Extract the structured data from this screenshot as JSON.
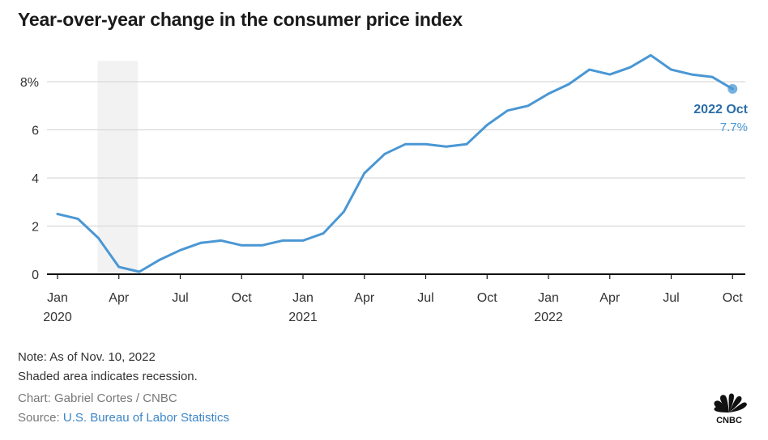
{
  "chart_data": {
    "type": "line",
    "title": "Year-over-year change in the consumer price index",
    "xlabel": "",
    "ylabel": "",
    "ylim": [
      0,
      9
    ],
    "yticks": [
      0,
      2,
      4,
      6,
      8
    ],
    "ytick_labels": [
      "0",
      "2",
      "4",
      "6",
      "8%"
    ],
    "grid": true,
    "xticks": [
      {
        "month": "2020-01",
        "label": "Jan",
        "year": "2020"
      },
      {
        "month": "2020-04",
        "label": "Apr",
        "year": ""
      },
      {
        "month": "2020-07",
        "label": "Jul",
        "year": ""
      },
      {
        "month": "2020-10",
        "label": "Oct",
        "year": ""
      },
      {
        "month": "2021-01",
        "label": "Jan",
        "year": "2021"
      },
      {
        "month": "2021-04",
        "label": "Apr",
        "year": ""
      },
      {
        "month": "2021-07",
        "label": "Jul",
        "year": ""
      },
      {
        "month": "2021-10",
        "label": "Oct",
        "year": ""
      },
      {
        "month": "2022-01",
        "label": "Jan",
        "year": "2022"
      },
      {
        "month": "2022-04",
        "label": "Apr",
        "year": ""
      },
      {
        "month": "2022-07",
        "label": "Jul",
        "year": ""
      },
      {
        "month": "2022-10",
        "label": "Oct",
        "year": ""
      }
    ],
    "x": [
      "2020-01",
      "2020-02",
      "2020-03",
      "2020-04",
      "2020-05",
      "2020-06",
      "2020-07",
      "2020-08",
      "2020-09",
      "2020-10",
      "2020-11",
      "2020-12",
      "2021-01",
      "2021-02",
      "2021-03",
      "2021-04",
      "2021-05",
      "2021-06",
      "2021-07",
      "2021-08",
      "2021-09",
      "2021-10",
      "2021-11",
      "2021-12",
      "2022-01",
      "2022-02",
      "2022-03",
      "2022-04",
      "2022-05",
      "2022-06",
      "2022-07",
      "2022-08",
      "2022-09",
      "2022-10"
    ],
    "series": [
      {
        "name": "CPI year-over-year change (%)",
        "color": "#4a97d4",
        "values": [
          2.5,
          2.3,
          1.5,
          0.3,
          0.1,
          0.6,
          1.0,
          1.3,
          1.4,
          1.2,
          1.2,
          1.4,
          1.4,
          1.7,
          2.6,
          4.2,
          5.0,
          5.4,
          5.4,
          5.3,
          5.4,
          6.2,
          6.8,
          7.0,
          7.5,
          7.9,
          8.5,
          8.3,
          8.6,
          9.1,
          8.5,
          8.3,
          8.2,
          7.7
        ]
      }
    ],
    "shaded_regions": [
      {
        "label": "Recession",
        "start": "2020-03",
        "end": "2020-05",
        "color": "#f2f2f2"
      }
    ],
    "annotations": [
      {
        "month": "2022-10",
        "label": "2022 Oct",
        "value_label": "7.7%",
        "label_color": "#2a6ea8",
        "value_color": "#4a97d4"
      }
    ]
  },
  "footer": {
    "note": "Note: As of Nov. 10, 2022",
    "shading_note": "Shaded area indicates recession.",
    "credit": "Chart: Gabriel Cortes / CNBC",
    "source_prefix": "Source: ",
    "source_link": "U.S. Bureau of Labor Statistics"
  },
  "logo": {
    "name": "CNBC",
    "text": "CNBC"
  }
}
